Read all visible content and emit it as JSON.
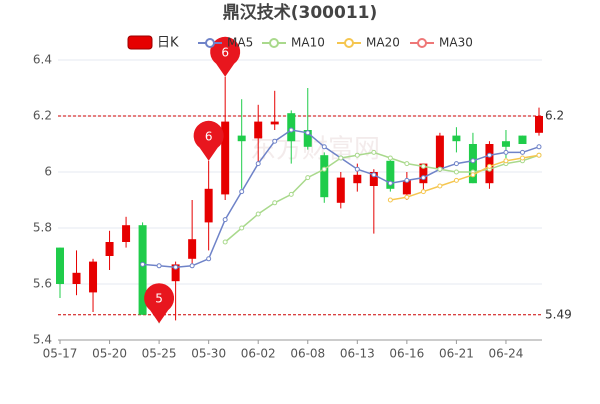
{
  "chart_data": {
    "type": "candlestick",
    "title": "鼎汉技术(300011)",
    "kline_name": "日K",
    "up_color": "#e60000",
    "down_color": "#1fcc4a",
    "categories": [
      "05-17",
      null,
      null,
      "05-20",
      null,
      null,
      "05-25",
      null,
      null,
      "05-30",
      null,
      null,
      "06-02",
      null,
      null,
      "06-08",
      null,
      null,
      "06-13",
      null,
      null,
      "06-16",
      null,
      null,
      "06-21",
      null,
      null,
      "06-24",
      null,
      null
    ],
    "open": [
      5.73,
      5.6,
      5.57,
      5.7,
      5.75,
      5.81,
      5.55,
      5.61,
      5.69,
      5.82,
      5.92,
      6.13,
      6.12,
      6.17,
      6.21,
      6.15,
      6.06,
      5.89,
      5.96,
      5.95,
      6.04,
      5.92,
      5.96,
      6.01,
      6.13,
      6.1,
      5.96,
      6.11,
      6.13,
      6.14
    ],
    "close": [
      5.6,
      5.64,
      5.68,
      5.75,
      5.81,
      5.49,
      5.5,
      5.67,
      5.76,
      5.94,
      6.18,
      6.11,
      6.18,
      6.18,
      6.11,
      6.09,
      5.91,
      5.98,
      5.99,
      6.0,
      5.94,
      5.97,
      6.03,
      6.13,
      6.11,
      5.96,
      6.1,
      6.09,
      6.1,
      6.2
    ],
    "high": [
      5.73,
      5.72,
      5.69,
      5.79,
      5.84,
      5.82,
      5.58,
      5.68,
      5.9,
      6.04,
      6.34,
      6.26,
      6.24,
      6.29,
      6.22,
      6.3,
      6.07,
      6.0,
      6.03,
      6.01,
      6.05,
      6.0,
      6.03,
      6.14,
      6.16,
      6.14,
      6.11,
      6.15,
      6.13,
      6.23
    ],
    "low": [
      5.55,
      5.56,
      5.5,
      5.65,
      5.73,
      5.49,
      5.46,
      5.47,
      5.66,
      5.72,
      5.9,
      5.94,
      6.03,
      6.15,
      6.03,
      6.08,
      5.89,
      5.87,
      5.93,
      5.78,
      5.93,
      5.9,
      5.93,
      6.0,
      6.07,
      5.96,
      5.94,
      6.05,
      6.1,
      6.13
    ],
    "series": [
      {
        "name": "MA5",
        "color": "#6f83c8",
        "values": [
          null,
          null,
          null,
          null,
          null,
          5.67,
          5.665,
          5.66,
          5.665,
          5.69,
          5.83,
          5.93,
          6.03,
          6.11,
          6.15,
          6.14,
          6.09,
          6.05,
          6.01,
          5.99,
          5.96,
          5.97,
          5.98,
          6.01,
          6.03,
          6.04,
          6.06,
          6.07,
          6.07,
          6.09
        ]
      },
      {
        "name": "MA10",
        "color": "#a9d98c",
        "values": [
          null,
          null,
          null,
          null,
          null,
          null,
          null,
          null,
          null,
          null,
          5.75,
          5.8,
          5.85,
          5.89,
          5.92,
          5.98,
          6.01,
          6.05,
          6.06,
          6.07,
          6.05,
          6.03,
          6.02,
          6.01,
          6.0,
          6.0,
          6.01,
          6.03,
          6.04,
          6.06
        ]
      },
      {
        "name": "MA20",
        "color": "#f5c64f",
        "values": [
          null,
          null,
          null,
          null,
          null,
          null,
          null,
          null,
          null,
          null,
          null,
          null,
          null,
          null,
          null,
          null,
          null,
          null,
          null,
          null,
          5.9,
          5.91,
          5.93,
          5.95,
          5.97,
          5.99,
          6.02,
          6.04,
          6.05,
          6.06
        ]
      },
      {
        "name": "MA30",
        "color": "#ee7777",
        "values": [
          null,
          null,
          null,
          null,
          null,
          null,
          null,
          null,
          null,
          null,
          null,
          null,
          null,
          null,
          null,
          null,
          null,
          null,
          null,
          null,
          null,
          null,
          null,
          null,
          null,
          null,
          null,
          null,
          null,
          null
        ]
      }
    ],
    "markers": [
      {
        "index": 9,
        "value": 6.04,
        "label": "6"
      },
      {
        "index": 10,
        "value": 6.34,
        "label": "6"
      },
      {
        "index": 6,
        "value": 5.46,
        "label": "5"
      }
    ],
    "hlines": [
      6.2,
      5.49
    ],
    "ylim": [
      5.4,
      6.4
    ],
    "yticks": [
      5.4,
      5.6,
      5.8,
      6,
      6.2,
      6.4
    ],
    "grid": true,
    "watermark": "东方财富网"
  }
}
